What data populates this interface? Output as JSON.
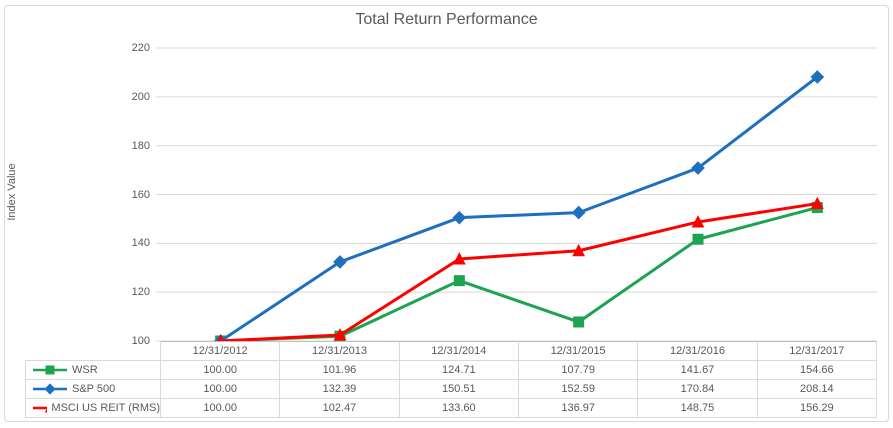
{
  "title": "Total Return Performance",
  "y_axis_label": "Index Value",
  "colors": {
    "text": "#595959",
    "grid": "#d9d9d9",
    "axis_line": "#bfbfbf",
    "frame_border": "#d9d9d9",
    "background": "#ffffff",
    "wsr_green": "#1ea350",
    "sp500_blue": "#1e6fc0",
    "msci_red": "#fe0000"
  },
  "chart_data": {
    "type": "line",
    "title": "Total Return Performance",
    "xlabel": "",
    "ylabel": "Index Value",
    "categories": [
      "12/31/2012",
      "12/31/2013",
      "12/31/2014",
      "12/31/2015",
      "12/31/2016",
      "12/31/2017"
    ],
    "series": [
      {
        "name": "WSR",
        "marker": "square",
        "color": "#1ea350",
        "values": [
          100.0,
          101.96,
          124.71,
          107.79,
          141.67,
          154.66
        ]
      },
      {
        "name": "S&P 500",
        "marker": "diamond",
        "color": "#1e6fc0",
        "values": [
          100.0,
          132.39,
          150.51,
          152.59,
          170.84,
          208.14
        ]
      },
      {
        "name": "MSCI US REIT (RMS)",
        "marker": "triangle",
        "color": "#fe0000",
        "values": [
          100.0,
          102.47,
          133.6,
          136.97,
          148.75,
          156.29
        ]
      }
    ],
    "ylim": [
      100,
      220
    ],
    "yticks": [
      100,
      120,
      140,
      160,
      180,
      200,
      220
    ],
    "grid": true,
    "legend_position": "table-left",
    "value_decimals": 2
  }
}
